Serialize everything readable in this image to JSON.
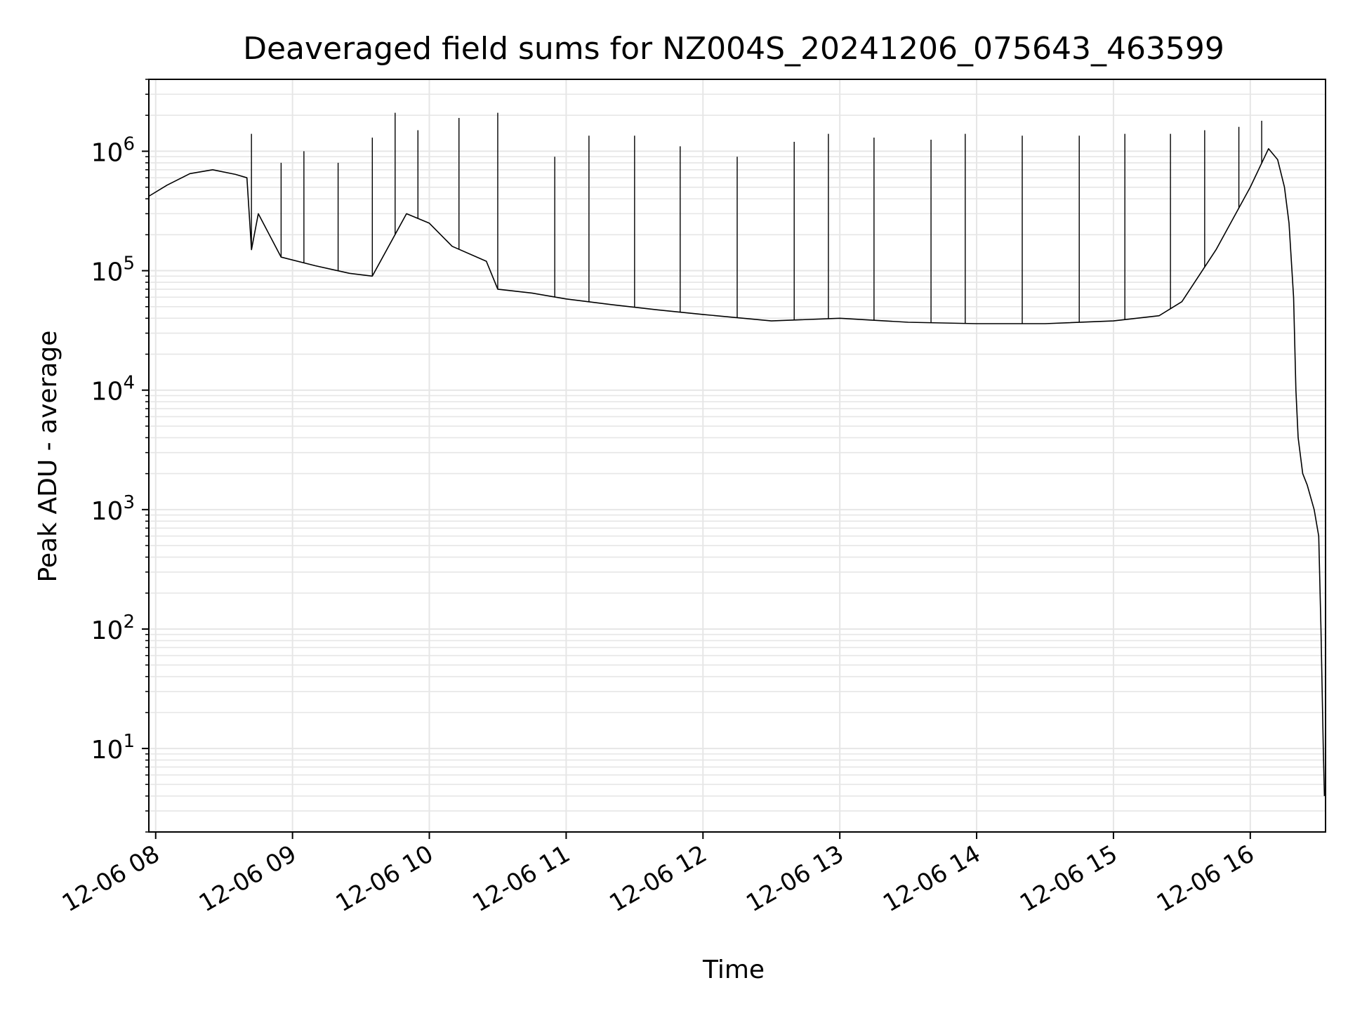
{
  "chart_data": {
    "type": "line",
    "title": "Deaveraged field sums for NZ004S_20241206_075643_463599",
    "xlabel": "Time",
    "ylabel": "Peak ADU - average",
    "y_scale": "log",
    "ylim": [
      2,
      4000000
    ],
    "xlim": [
      "2024-12-06T07:57:00",
      "2024-12-06T16:33:00"
    ],
    "grid": true,
    "line_color": "#000000",
    "grid_color": "#e6e6e6",
    "x_ticks": [
      {
        "t": "2024-12-06T08:00:00",
        "label": "12-06 08"
      },
      {
        "t": "2024-12-06T09:00:00",
        "label": "12-06 09"
      },
      {
        "t": "2024-12-06T10:00:00",
        "label": "12-06 10"
      },
      {
        "t": "2024-12-06T11:00:00",
        "label": "12-06 11"
      },
      {
        "t": "2024-12-06T12:00:00",
        "label": "12-06 12"
      },
      {
        "t": "2024-12-06T13:00:00",
        "label": "12-06 13"
      },
      {
        "t": "2024-12-06T14:00:00",
        "label": "12-06 14"
      },
      {
        "t": "2024-12-06T15:00:00",
        "label": "12-06 15"
      },
      {
        "t": "2024-12-06T16:00:00",
        "label": "12-06 16"
      }
    ],
    "y_ticks": [
      {
        "v": 10,
        "base": "10",
        "exp": "1"
      },
      {
        "v": 100,
        "base": "10",
        "exp": "2"
      },
      {
        "v": 1000,
        "base": "10",
        "exp": "3"
      },
      {
        "v": 10000,
        "base": "10",
        "exp": "4"
      },
      {
        "v": 100000,
        "base": "10",
        "exp": "5"
      },
      {
        "v": 1000000,
        "base": "10",
        "exp": "6"
      }
    ],
    "series": [
      {
        "points": [
          [
            "2024-12-06T07:57:00",
            420000
          ],
          [
            "2024-12-06T08:05:00",
            520000
          ],
          [
            "2024-12-06T08:15:00",
            650000
          ],
          [
            "2024-12-06T08:25:00",
            700000
          ],
          [
            "2024-12-06T08:35:00",
            640000
          ],
          [
            "2024-12-06T08:40:00",
            600000
          ],
          [
            "2024-12-06T08:42:00",
            150000
          ],
          [
            "2024-12-06T08:45:00",
            300000
          ],
          [
            "2024-12-06T08:55:00",
            130000
          ],
          [
            "2024-12-06T09:10:00",
            110000
          ],
          [
            "2024-12-06T09:25:00",
            95000
          ],
          [
            "2024-12-06T09:35:00",
            90000
          ],
          [
            "2024-12-06T09:50:00",
            300000
          ],
          [
            "2024-12-06T10:00:00",
            250000
          ],
          [
            "2024-12-06T10:10:00",
            160000
          ],
          [
            "2024-12-06T10:25:00",
            120000
          ],
          [
            "2024-12-06T10:30:00",
            70000
          ],
          [
            "2024-12-06T10:45:00",
            65000
          ],
          [
            "2024-12-06T11:00:00",
            58000
          ],
          [
            "2024-12-06T11:20:00",
            52000
          ],
          [
            "2024-12-06T11:40:00",
            47000
          ],
          [
            "2024-12-06T12:00:00",
            43000
          ],
          [
            "2024-12-06T12:30:00",
            38000
          ],
          [
            "2024-12-06T13:00:00",
            40000
          ],
          [
            "2024-12-06T13:30:00",
            37000
          ],
          [
            "2024-12-06T14:00:00",
            36000
          ],
          [
            "2024-12-06T14:30:00",
            36000
          ],
          [
            "2024-12-06T15:00:00",
            38000
          ],
          [
            "2024-12-06T15:20:00",
            42000
          ],
          [
            "2024-12-06T15:30:00",
            55000
          ],
          [
            "2024-12-06T15:45:00",
            150000
          ],
          [
            "2024-12-06T16:00:00",
            500000
          ],
          [
            "2024-12-06T16:08:00",
            1050000
          ],
          [
            "2024-12-06T16:12:00",
            850000
          ],
          [
            "2024-12-06T16:15:00",
            500000
          ],
          [
            "2024-12-06T16:17:00",
            250000
          ],
          [
            "2024-12-06T16:19:00",
            60000
          ],
          [
            "2024-12-06T16:20:00",
            10000
          ],
          [
            "2024-12-06T16:21:00",
            4000
          ],
          [
            "2024-12-06T16:23:00",
            2000
          ],
          [
            "2024-12-06T16:25:00",
            1600
          ],
          [
            "2024-12-06T16:28:00",
            1000
          ],
          [
            "2024-12-06T16:30:00",
            600
          ],
          [
            "2024-12-06T16:31:00",
            100
          ],
          [
            "2024-12-06T16:32:00",
            10
          ],
          [
            "2024-12-06T16:32:30",
            4
          ]
        ],
        "spikes": [
          [
            "2024-12-06T08:42:00",
            1400000
          ],
          [
            "2024-12-06T08:55:00",
            800000
          ],
          [
            "2024-12-06T09:05:00",
            1000000
          ],
          [
            "2024-12-06T09:20:00",
            800000
          ],
          [
            "2024-12-06T09:35:00",
            1300000
          ],
          [
            "2024-12-06T09:45:00",
            2100000
          ],
          [
            "2024-12-06T09:55:00",
            1500000
          ],
          [
            "2024-12-06T10:13:00",
            1900000
          ],
          [
            "2024-12-06T10:30:00",
            2100000
          ],
          [
            "2024-12-06T10:55:00",
            900000
          ],
          [
            "2024-12-06T11:10:00",
            1350000
          ],
          [
            "2024-12-06T11:30:00",
            1350000
          ],
          [
            "2024-12-06T11:50:00",
            1100000
          ],
          [
            "2024-12-06T12:15:00",
            900000
          ],
          [
            "2024-12-06T12:40:00",
            1200000
          ],
          [
            "2024-12-06T12:55:00",
            1400000
          ],
          [
            "2024-12-06T13:15:00",
            1300000
          ],
          [
            "2024-12-06T13:40:00",
            1250000
          ],
          [
            "2024-12-06T13:55:00",
            1400000
          ],
          [
            "2024-12-06T14:20:00",
            1350000
          ],
          [
            "2024-12-06T14:45:00",
            1350000
          ],
          [
            "2024-12-06T15:05:00",
            1400000
          ],
          [
            "2024-12-06T15:25:00",
            1400000
          ],
          [
            "2024-12-06T15:40:00",
            1500000
          ],
          [
            "2024-12-06T15:55:00",
            1600000
          ],
          [
            "2024-12-06T16:05:00",
            1800000
          ]
        ]
      }
    ]
  }
}
